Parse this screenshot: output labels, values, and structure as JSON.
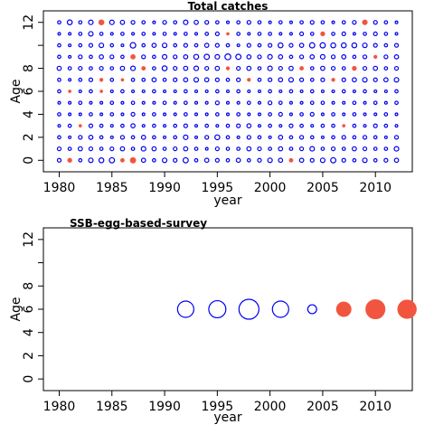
{
  "chart_data": [
    {
      "type": "scatter",
      "subtype": "bubble-residuals",
      "title": "Total catches",
      "xlabel": "year",
      "ylabel": "Age",
      "xlim": [
        1978.5,
        2013.5
      ],
      "ylim": [
        -1,
        13
      ],
      "xticks": [
        "1980",
        "1985",
        "1990",
        "1995",
        "2000",
        "2005",
        "2010"
      ],
      "yticks": [
        "0",
        "2",
        "4",
        "6",
        "8",
        "12"
      ],
      "marker_colors": {
        "positive": "#0000ee",
        "negative": "#f2553f"
      },
      "years": [
        1980,
        1981,
        1982,
        1983,
        1984,
        1985,
        1986,
        1987,
        1988,
        1989,
        1990,
        1991,
        1992,
        1993,
        1994,
        1995,
        1996,
        1997,
        1998,
        1999,
        2000,
        2001,
        2002,
        2003,
        2004,
        2005,
        2006,
        2007,
        2008,
        2009,
        2010,
        2011,
        2012
      ],
      "ages": [
        0,
        1,
        2,
        3,
        4,
        5,
        6,
        7,
        8,
        9,
        10,
        11,
        12
      ],
      "residuals_by_age": [
        [
          0.4,
          -0.5,
          0.3,
          0.6,
          0.7,
          0.8,
          -0.4,
          -0.9,
          0.5,
          0.3,
          0.6,
          0.4,
          0.8,
          0.3,
          0.5,
          0.4,
          0.3,
          0.5,
          0.3,
          0.4,
          0.6,
          0.5,
          -0.4,
          0.5,
          0.4,
          0.6,
          0.8,
          0.4,
          0.3,
          0.6,
          0.3,
          0.4,
          0.5
        ],
        [
          0.4,
          0.3,
          0.5,
          0.4,
          0.3,
          0.4,
          0.5,
          0.3,
          0.6,
          0.5,
          0.3,
          0.4,
          0.5,
          0.3,
          0.2,
          0.4,
          0.3,
          0.3,
          0.5,
          0.4,
          0.3,
          0.5,
          0.3,
          0.4,
          0.6,
          0.3,
          0.4,
          0.3,
          0.5,
          0.4,
          0.3,
          0.3,
          0.6
        ],
        [
          0.3,
          0.2,
          0.4,
          0.5,
          0.3,
          0.2,
          0.4,
          0.3,
          0.5,
          0.3,
          0.2,
          0.3,
          0.6,
          0.2,
          0.4,
          0.7,
          0.3,
          0.2,
          0.4,
          0.3,
          0.2,
          0.5,
          0.3,
          0.4,
          0.3,
          0.2,
          0.3,
          0.4,
          0.3,
          0.4,
          0.3,
          0.2,
          0.4
        ],
        [
          0.2,
          0.3,
          -0.2,
          0.4,
          0.3,
          0.2,
          0.3,
          0.5,
          0.2,
          0.3,
          0.2,
          0.3,
          0.4,
          0.2,
          0.3,
          0.2,
          0.3,
          0.4,
          0.5,
          0.2,
          0.3,
          0.2,
          0.4,
          0.3,
          0.2,
          0.3,
          0.3,
          -0.2,
          0.3,
          0.2,
          0.4,
          0.3,
          0.2
        ],
        [
          0.3,
          0.2,
          0.2,
          0.3,
          0.2,
          0.3,
          0.2,
          0.4,
          0.2,
          0.3,
          0.2,
          0.2,
          0.3,
          0.2,
          0.2,
          0.3,
          0.2,
          0.3,
          0.2,
          0.2,
          0.3,
          0.4,
          0.2,
          0.3,
          0.4,
          0.2,
          0.3,
          0.2,
          0.3,
          0.2,
          0.2,
          0.3,
          0.2
        ],
        [
          0.2,
          0.2,
          0.3,
          0.2,
          0.2,
          0.3,
          0.2,
          0.3,
          0.2,
          0.2,
          0.3,
          0.2,
          0.3,
          0.2,
          0.2,
          0.4,
          0.2,
          0.2,
          0.3,
          0.2,
          0.4,
          0.3,
          0.2,
          0.2,
          0.3,
          0.3,
          0.2,
          0.2,
          0.3,
          0.2,
          0.3,
          0.2,
          0.3
        ],
        [
          0.3,
          -0.2,
          0.2,
          0.3,
          -0.2,
          0.2,
          0.3,
          0.2,
          0.2,
          0.3,
          0.2,
          0.2,
          0.3,
          0.2,
          0.2,
          0.3,
          0.2,
          0.3,
          0.2,
          0.2,
          0.3,
          0.2,
          0.3,
          0.2,
          0.3,
          0.2,
          0.2,
          0.3,
          0.2,
          0.3,
          0.2,
          0.2,
          0.3
        ],
        [
          0.3,
          0.2,
          0.3,
          0.4,
          -0.3,
          0.3,
          -0.2,
          0.3,
          0.3,
          0.5,
          0.3,
          0.4,
          0.5,
          0.6,
          0.5,
          0.4,
          0.3,
          0.4,
          -0.3,
          0.3,
          0.4,
          0.5,
          0.6,
          0.4,
          0.3,
          0.4,
          -0.3,
          0.4,
          0.5,
          0.6,
          0.4,
          0.5,
          0.6
        ],
        [
          0.5,
          0.3,
          0.4,
          0.3,
          0.4,
          0.3,
          0.5,
          0.6,
          -0.4,
          0.3,
          0.7,
          0.4,
          0.5,
          0.6,
          0.4,
          0.5,
          -0.3,
          0.4,
          0.5,
          0.3,
          0.6,
          0.4,
          0.5,
          -0.4,
          0.3,
          0.5,
          0.4,
          0.3,
          -0.5,
          0.4,
          0.5,
          0.3,
          0.4
        ],
        [
          0.3,
          0.2,
          0.4,
          0.3,
          0.5,
          0.4,
          0.3,
          -0.6,
          0.4,
          0.3,
          0.6,
          0.4,
          0.5,
          0.7,
          0.8,
          0.6,
          1.0,
          0.8,
          0.5,
          0.4,
          0.6,
          0.5,
          0.3,
          0.4,
          0.5,
          0.6,
          0.4,
          0.5,
          0.3,
          0.4,
          -0.3,
          0.4,
          0.5
        ],
        [
          0.3,
          0.2,
          0.3,
          0.4,
          0.6,
          0.3,
          0.2,
          0.9,
          0.3,
          0.5,
          0.6,
          0.3,
          0.4,
          0.3,
          0.5,
          0.4,
          0.3,
          0.2,
          0.4,
          0.3,
          0.4,
          0.7,
          0.4,
          0.5,
          0.8,
          0.8,
          0.7,
          0.7,
          0.7,
          0.6,
          0.4,
          0.3,
          0.4
        ],
        [
          0.2,
          0.2,
          0.3,
          0.6,
          0.3,
          0.2,
          0.3,
          0.2,
          0.3,
          0.2,
          0.3,
          0.2,
          0.3,
          0.2,
          0.3,
          0.4,
          -0.2,
          0.3,
          0.2,
          0.3,
          0.3,
          0.2,
          0.2,
          0.4,
          0.3,
          -0.5,
          0.3,
          0.4,
          0.2,
          0.3,
          0.4,
          0.3,
          0.2
        ],
        [
          0.3,
          0.7,
          0.3,
          0.6,
          -0.8,
          0.6,
          0.5,
          0.4,
          0.3,
          0.2,
          0.4,
          0.3,
          0.6,
          0.5,
          0.4,
          0.3,
          0.2,
          0.3,
          0.4,
          0.3,
          0.2,
          0.3,
          0.2,
          0.3,
          0.4,
          0.3,
          0.2,
          0.3,
          0.4,
          -0.7,
          0.4,
          0.3,
          0.2
        ]
      ]
    },
    {
      "type": "scatter",
      "subtype": "bubble-residuals",
      "title": "SSB-egg-based-survey",
      "xlabel": "year",
      "ylabel": "Age",
      "xlim": [
        1978.5,
        2013.5
      ],
      "ylim": [
        -1,
        13
      ],
      "xticks": [
        "1980",
        "1985",
        "1990",
        "1995",
        "2000",
        "2005",
        "2010"
      ],
      "yticks": [
        "0",
        "2",
        "4",
        "6",
        "8",
        "12"
      ],
      "marker_colors": {
        "positive": "#0000ee",
        "negative": "#f2553f"
      },
      "points": [
        {
          "year": 1992,
          "age": 6,
          "residual": 1.0
        },
        {
          "year": 1995,
          "age": 6,
          "residual": 1.1
        },
        {
          "year": 1998,
          "age": 6,
          "residual": 1.5
        },
        {
          "year": 2001,
          "age": 6,
          "residual": 1.0
        },
        {
          "year": 2004,
          "age": 6,
          "residual": 0.3
        },
        {
          "year": 2007,
          "age": 6,
          "residual": -0.8
        },
        {
          "year": 2010,
          "age": 6,
          "residual": -1.4
        },
        {
          "year": 2013,
          "age": 6,
          "residual": -1.3
        }
      ]
    }
  ]
}
